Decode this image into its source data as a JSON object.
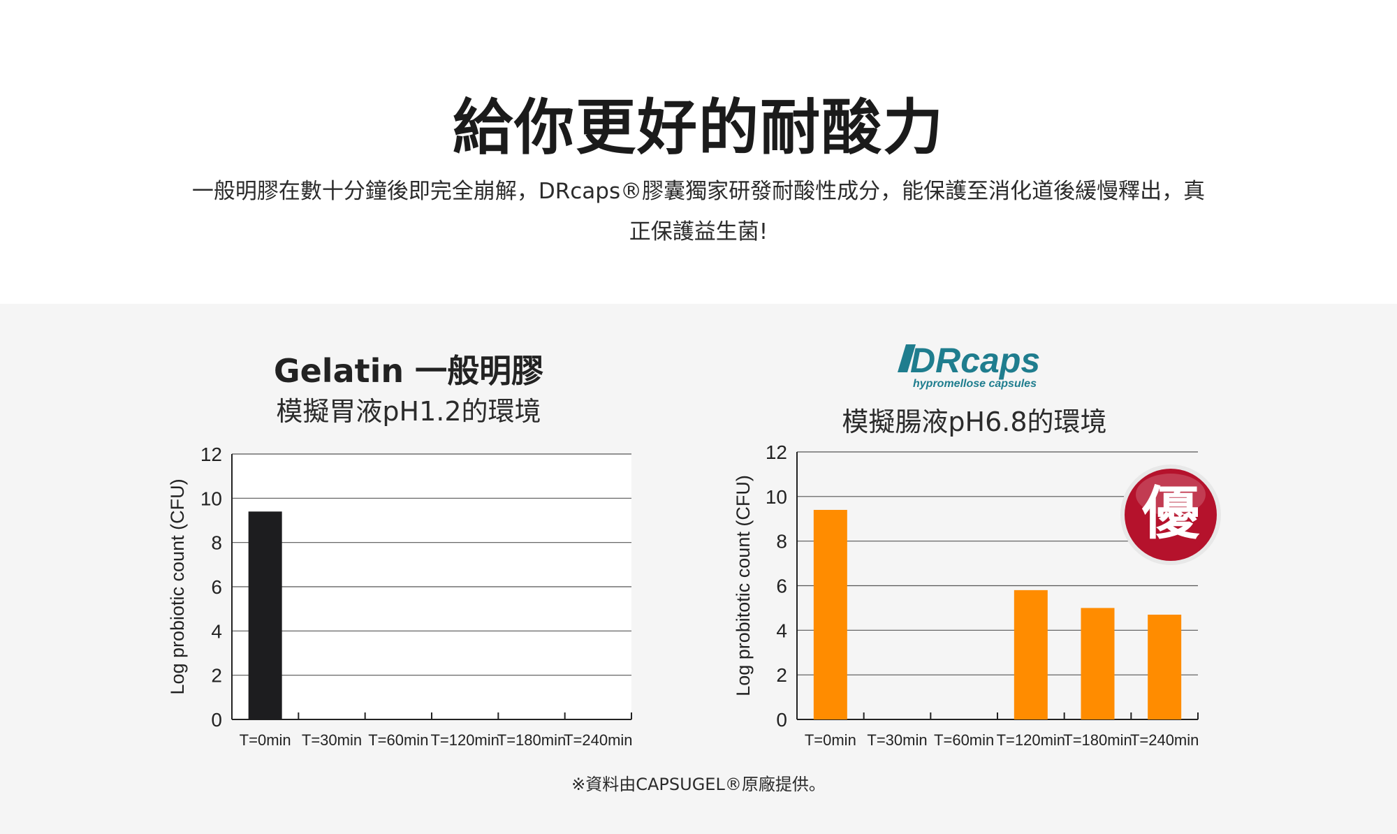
{
  "header": {
    "title": "給你更好的耐酸力",
    "description_line1": "一般明膠在數十分鐘後即完全崩解，DRcaps®膠囊獨家研發耐酸性成分，能保護至消化道後緩慢釋出，真",
    "description_line2": "正保護益生菌!"
  },
  "left_panel": {
    "title": "Gelatin 一般明膠",
    "subtitle": "模擬胃液pH1.2的環境"
  },
  "right_panel": {
    "logo_text": "DRcaps",
    "logo_tagline": "hypromellose capsules",
    "subtitle": "模擬腸液pH6.8的環境",
    "badge_text": "優"
  },
  "footnote": "※資料由CAPSUGEL®原廠提供。",
  "colors": {
    "gelatin_bar": "#1d1d1f",
    "drcaps_bar": "#ff8c00",
    "badge": "#b5122c",
    "logo": "#1f7d8e"
  },
  "chart_data": [
    {
      "type": "bar",
      "categories": [
        "T=0min",
        "T=30min",
        "T=60min",
        "T=120min",
        "T=180min",
        "T=240min"
      ],
      "values": [
        9.4,
        0,
        0,
        0,
        0,
        0
      ],
      "ylabel": "Log probiotic count (CFU)",
      "ylim": [
        0,
        12
      ],
      "yticks": [
        0,
        2,
        4,
        6,
        8,
        10,
        12
      ],
      "grid": true
    },
    {
      "type": "bar",
      "categories": [
        "T=0min",
        "T=30min",
        "T=60min",
        "T=120min",
        "T=180min",
        "T=240min"
      ],
      "values": [
        9.4,
        0,
        0,
        5.8,
        5.0,
        4.7
      ],
      "ylabel": "Log probitotic count (CFU)",
      "ylim": [
        0,
        12
      ],
      "yticks": [
        0,
        2,
        4,
        6,
        8,
        10,
        12
      ],
      "grid": true
    }
  ]
}
